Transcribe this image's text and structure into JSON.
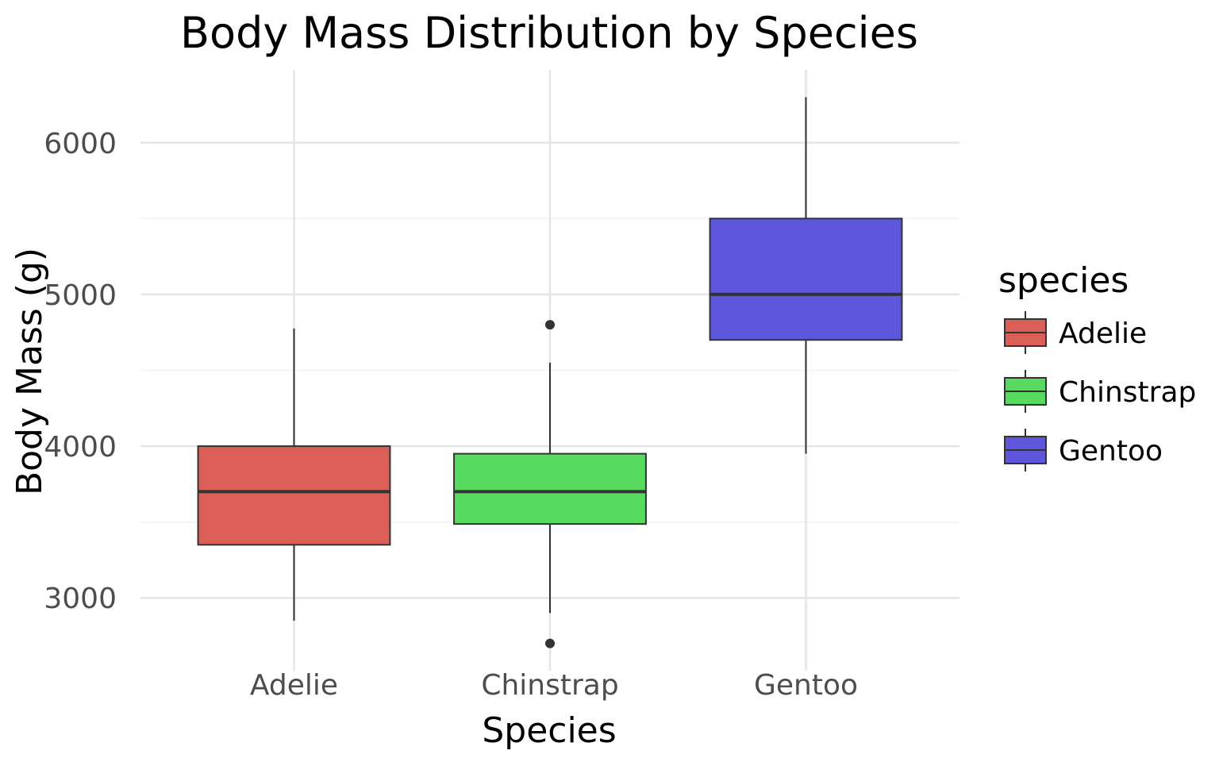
{
  "chart_data": {
    "type": "boxplot",
    "title": "Body Mass Distribution by Species",
    "xlabel": "Species",
    "ylabel": "Body Mass (g)",
    "categories": [
      "Adelie",
      "Chinstrap",
      "Gentoo"
    ],
    "ylim": [
      2520,
      6480
    ],
    "y_ticks": [
      3000,
      4000,
      5000,
      6000
    ],
    "y_tick_labels": [
      "3000",
      "4000",
      "5000",
      "6000"
    ],
    "y_minor_ticks": [
      3500,
      4500,
      5500
    ],
    "grid": true,
    "boxes": [
      {
        "category": "Adelie",
        "min": 2850,
        "q1": 3350,
        "median": 3700,
        "q3": 4000,
        "max": 4775,
        "outliers": [],
        "color": "#DB5F57"
      },
      {
        "category": "Chinstrap",
        "min": 2900,
        "q1": 3487,
        "median": 3700,
        "q3": 3950,
        "max": 4550,
        "outliers": [
          4800,
          2700
        ],
        "color": "#57DB5F"
      },
      {
        "category": "Gentoo",
        "min": 3950,
        "q1": 4700,
        "median": 5000,
        "q3": 5500,
        "max": 6300,
        "outliers": [],
        "color": "#5F57DB"
      }
    ],
    "legend": {
      "title": "species",
      "position": "right",
      "entries": [
        {
          "label": "Adelie",
          "color": "#DB5F57"
        },
        {
          "label": "Chinstrap",
          "color": "#57DB5F"
        },
        {
          "label": "Gentoo",
          "color": "#5F57DB"
        }
      ]
    },
    "colors": {
      "grid_major": "#e5e5e5",
      "grid_minor": "#f3f3f3",
      "line": "#333333"
    }
  }
}
